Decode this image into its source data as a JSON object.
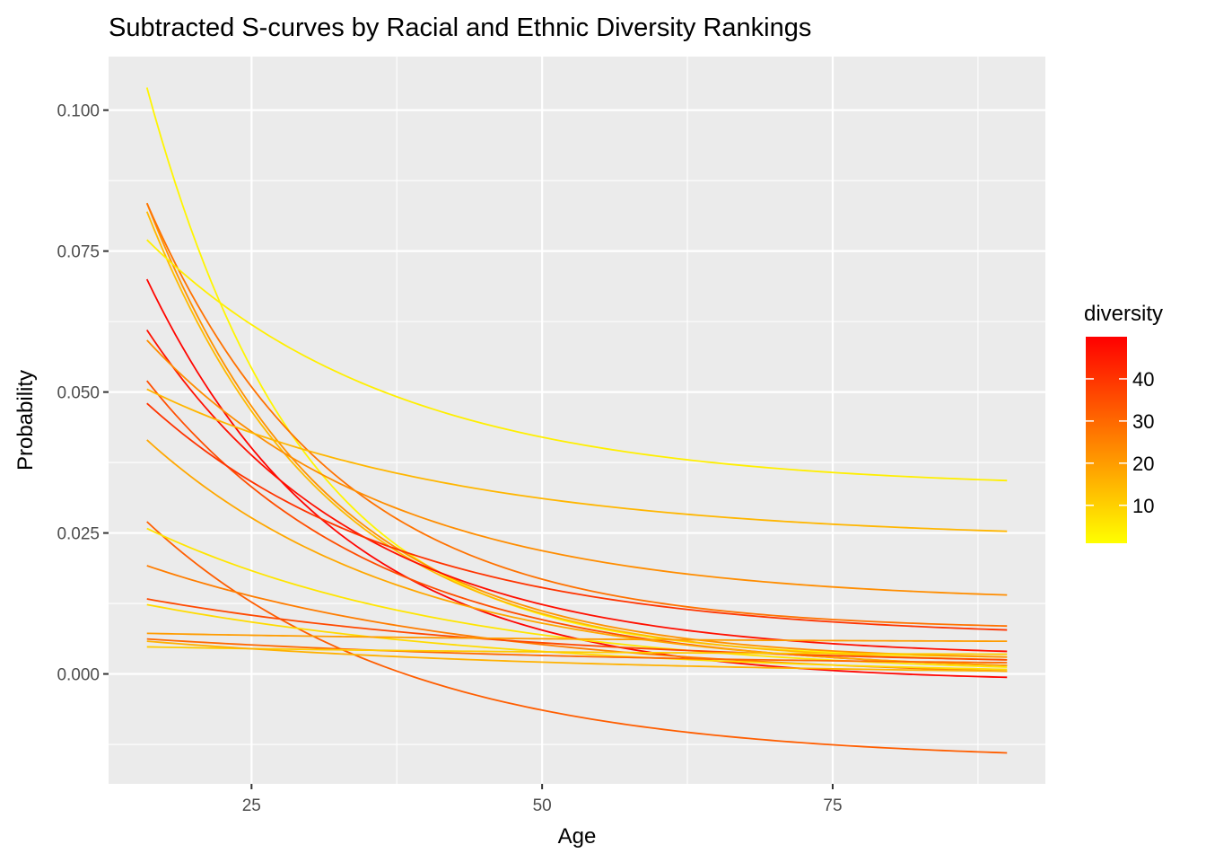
{
  "chart_data": {
    "type": "line",
    "title": "Subtracted S-curves by Racial and Ethnic Diversity Rankings",
    "xlabel": "Age",
    "ylabel": "Probability",
    "xlim": [
      12.7,
      93.3
    ],
    "ylim": [
      -0.0195,
      0.1095
    ],
    "x_ticks": [
      25,
      50,
      75
    ],
    "y_ticks": [
      0.0,
      0.025,
      0.05,
      0.075,
      0.1
    ],
    "x_tick_labels": [
      "25",
      "50",
      "75"
    ],
    "y_tick_labels": [
      "0.000",
      "0.025",
      "0.050",
      "0.075",
      "0.100"
    ],
    "grid": true,
    "panel_background": "#EBEBEB",
    "grid_color": "#FFFFFF",
    "x_range": [
      16,
      90
    ],
    "legend": {
      "title": "diversity",
      "position": "right",
      "type": "colorbar",
      "low_color": "#FFFF00",
      "high_color": "#FF0000",
      "range": [
        1,
        50
      ],
      "breaks": [
        10,
        20,
        30,
        40
      ],
      "labels": [
        "10",
        "20",
        "30",
        "40"
      ]
    },
    "series": [
      {
        "diversity": 3,
        "start": 0.104,
        "end": 0.003
      },
      {
        "diversity": 22,
        "start": 0.0835,
        "end": 0.003
      },
      {
        "diversity": 28,
        "start": 0.0835,
        "end": 0.0085
      },
      {
        "diversity": 14,
        "start": 0.082,
        "end": 0.0025
      },
      {
        "diversity": 4,
        "start": 0.077,
        "end": 0.0343
      },
      {
        "diversity": 49,
        "start": 0.07,
        "end": -0.0006
      },
      {
        "diversity": 47,
        "start": 0.061,
        "end": 0.004
      },
      {
        "diversity": 23,
        "start": 0.0592,
        "end": 0.014
      },
      {
        "diversity": 35,
        "start": 0.052,
        "end": 0.0015
      },
      {
        "diversity": 15,
        "start": 0.0505,
        "end": 0.0253
      },
      {
        "diversity": 40,
        "start": 0.048,
        "end": 0.0078
      },
      {
        "diversity": 18,
        "start": 0.0415,
        "end": 0.0015
      },
      {
        "diversity": 32,
        "start": 0.027,
        "end": -0.014
      },
      {
        "diversity": 6,
        "start": 0.0258,
        "end": 0.0012
      },
      {
        "diversity": 26,
        "start": 0.0192,
        "end": 0.0005
      },
      {
        "diversity": 36,
        "start": 0.0133,
        "end": 0.0025
      },
      {
        "diversity": 8,
        "start": 0.0123,
        "end": 0.0008
      },
      {
        "diversity": 20,
        "start": 0.0072,
        "end": 0.0058
      },
      {
        "diversity": 30,
        "start": 0.0062,
        "end": 0.002
      },
      {
        "diversity": 11,
        "start": 0.0048,
        "end": 0.0035
      },
      {
        "diversity": 16,
        "start": 0.0058,
        "end": 0.0005
      }
    ]
  }
}
